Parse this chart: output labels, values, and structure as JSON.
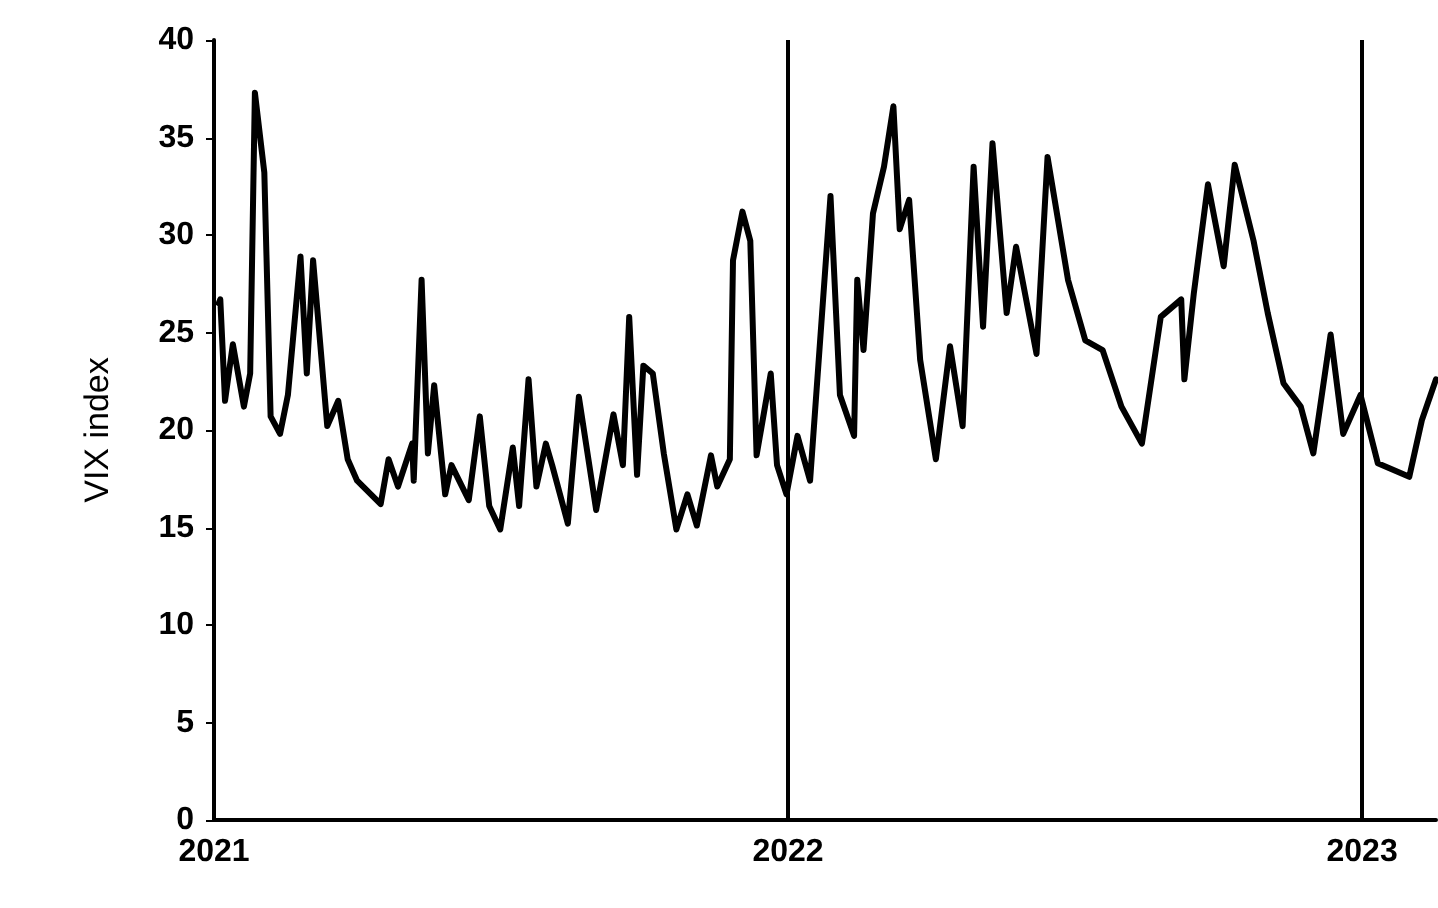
{
  "chart_data": {
    "type": "line",
    "ylabel": "VIX index",
    "x": [
      "2021-01-04",
      "2021-01-05",
      "2021-01-08",
      "2021-01-13",
      "2021-01-20",
      "2021-01-24",
      "2021-01-27",
      "2021-02-02",
      "2021-02-06",
      "2021-02-12",
      "2021-02-17",
      "2021-02-25",
      "2021-03-01",
      "2021-03-05",
      "2021-03-14",
      "2021-03-21",
      "2021-03-27",
      "2021-04-02",
      "2021-04-17",
      "2021-04-22",
      "2021-04-28",
      "2021-05-07",
      "2021-05-08",
      "2021-05-13",
      "2021-05-17",
      "2021-05-21",
      "2021-05-28",
      "2021-06-01",
      "2021-06-12",
      "2021-06-19",
      "2021-06-25",
      "2021-07-02",
      "2021-07-10",
      "2021-07-14",
      "2021-07-20",
      "2021-07-25",
      "2021-07-31",
      "2021-08-04",
      "2021-08-14",
      "2021-08-21",
      "2021-09-01",
      "2021-09-12",
      "2021-09-18",
      "2021-09-22",
      "2021-09-27",
      "2021-10-01",
      "2021-10-07",
      "2021-10-14",
      "2021-10-22",
      "2021-10-29",
      "2021-11-04",
      "2021-11-13",
      "2021-11-17",
      "2021-11-25",
      "2021-11-27",
      "2021-12-03",
      "2021-12-08",
      "2021-12-12",
      "2021-12-21",
      "2021-12-25",
      "2021-12-31",
      "2022-01-07",
      "2022-01-15",
      "2022-01-28",
      "2022-02-03",
      "2022-02-12",
      "2022-02-14",
      "2022-02-18",
      "2022-02-24",
      "2022-03-03",
      "2022-03-09",
      "2022-03-13",
      "2022-03-19",
      "2022-03-26",
      "2022-04-05",
      "2022-04-14",
      "2022-04-22",
      "2022-04-29",
      "2022-05-05",
      "2022-05-11",
      "2022-05-20",
      "2022-05-26",
      "2022-06-08",
      "2022-06-15",
      "2022-06-28",
      "2022-07-09",
      "2022-07-20",
      "2022-08-01",
      "2022-08-14",
      "2022-08-26",
      "2022-09-08",
      "2022-09-10",
      "2022-09-16",
      "2022-09-25",
      "2022-10-05",
      "2022-10-12",
      "2022-10-24",
      "2022-11-02",
      "2022-11-12",
      "2022-11-23",
      "2022-12-01",
      "2022-12-12",
      "2022-12-20",
      "2022-12-31",
      "2023-01-11",
      "2023-01-31",
      "2023-02-08",
      "2023-02-17"
    ],
    "series": [
      {
        "color": "#000000",
        "values": [
          26.5,
          26.7,
          21.5,
          24.4,
          21.2,
          22.9,
          37.3,
          33.2,
          20.7,
          19.8,
          21.8,
          28.9,
          22.9,
          28.7,
          20.2,
          21.5,
          18.5,
          17.4,
          16.2,
          18.5,
          17.1,
          19.3,
          17.4,
          27.7,
          18.8,
          22.3,
          16.7,
          18.2,
          16.4,
          20.7,
          16.1,
          14.9,
          19.1,
          16.1,
          22.6,
          17.1,
          19.3,
          18.2,
          15.2,
          21.7,
          15.9,
          20.8,
          18.2,
          25.8,
          17.7,
          23.3,
          22.9,
          18.8,
          14.9,
          16.7,
          15.1,
          18.7,
          17.1,
          18.5,
          28.7,
          31.2,
          29.7,
          18.7,
          22.9,
          18.2,
          16.7,
          19.7,
          17.4,
          32.0,
          21.8,
          19.7,
          27.7,
          24.1,
          31.1,
          33.5,
          36.6,
          30.3,
          31.8,
          23.6,
          18.5,
          24.3,
          20.2,
          33.5,
          25.3,
          34.7,
          26.0,
          29.4,
          23.9,
          34.0,
          27.7,
          24.6,
          24.1,
          21.2,
          19.3,
          25.8,
          26.7,
          22.6,
          27.0,
          32.6,
          28.4,
          33.6,
          29.7,
          26.0,
          22.4,
          21.2,
          18.8,
          24.9,
          19.8,
          21.8,
          18.3,
          17.6,
          20.5,
          22.6
        ]
      }
    ],
    "xlim": [
      "2021-01-01",
      "2023-02-17"
    ],
    "xticks": [
      "2021",
      "2022",
      "2023"
    ],
    "ylim": [
      0,
      40
    ],
    "yticks": [
      0,
      5,
      10,
      15,
      20,
      25,
      30,
      35,
      40
    ],
    "ref_lines": [
      {
        "axis": "x",
        "value": "2022",
        "color": "#000000"
      },
      {
        "axis": "x",
        "value": "2023",
        "color": "#000000"
      }
    ],
    "grid": false,
    "marker": "none",
    "line_style": "solid"
  }
}
